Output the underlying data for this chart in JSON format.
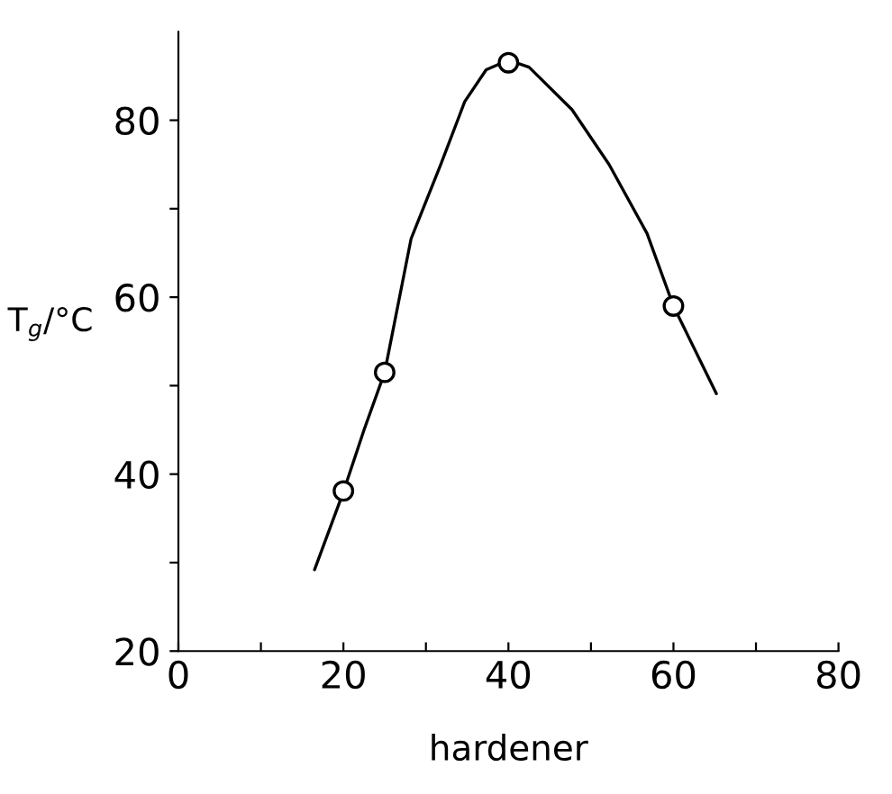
{
  "chart_data": {
    "type": "scatter",
    "xlabel": "hardener",
    "ylabel": "T$_{g}$/°C",
    "xlim": [
      0,
      80
    ],
    "ylim": [
      20,
      90
    ],
    "xticks": [
      0,
      {
        "value": 10,
        "label": null
      },
      20,
      {
        "value": 30,
        "label": null
      },
      40,
      {
        "value": 50,
        "label": null
      },
      60,
      {
        "value": 70,
        "label": null
      },
      80
    ],
    "yticks": [
      20,
      {
        "value": 30,
        "label": null
      },
      40,
      {
        "value": 50,
        "label": null
      },
      60,
      {
        "value": 70,
        "label": null
      },
      80
    ],
    "grid": false,
    "legend": false,
    "series": [
      {
        "type": "line",
        "color": "#000000",
        "marker": "none",
        "x": [
          16.5,
          20,
          22.5,
          25,
          28.2,
          31.8,
          34.7,
          37.3,
          40,
          42.5,
          47.7,
          52.2,
          56.8,
          60,
          65.2
        ],
        "values": [
          29.2,
          38,
          45,
          51.5,
          66.6,
          75,
          82.1,
          85.7,
          86.8,
          86,
          81.2,
          75,
          67.2,
          59,
          49.1
        ]
      },
      {
        "color": "#000000",
        "marker": "circle",
        "x": [
          20,
          25,
          40,
          60
        ],
        "values": [
          38.1,
          51.5,
          86.5,
          59.0
        ]
      }
    ]
  }
}
